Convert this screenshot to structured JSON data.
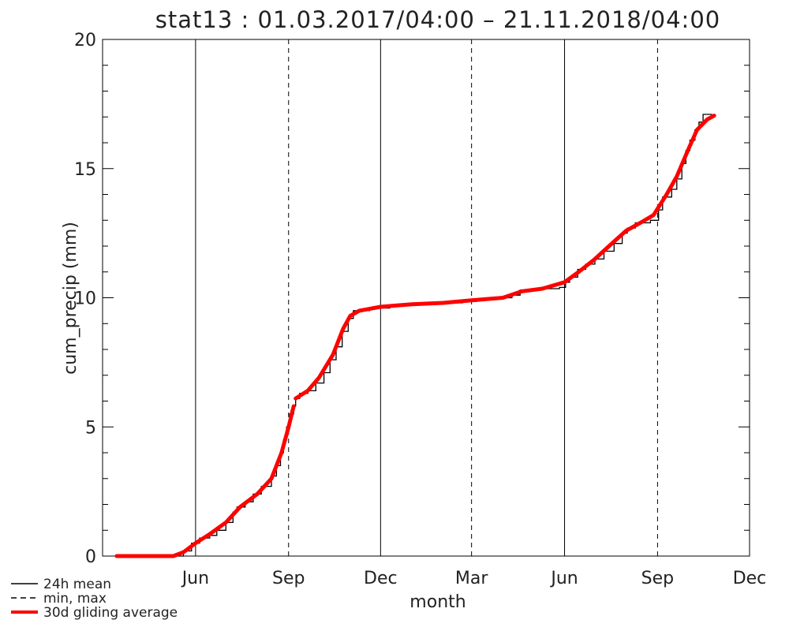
{
  "chart_data": {
    "type": "line",
    "title": "stat13 : 01.03.2017/04:00 – 21.11.2018/04:00",
    "xlabel": "month",
    "ylabel": "cum_precip (mm)",
    "ylim": [
      0,
      20
    ],
    "xlim": [
      "2017-03-01",
      "2018-12-01"
    ],
    "yticks": [
      0,
      5,
      10,
      15,
      20
    ],
    "xticks": [
      {
        "date": "2017-06-01",
        "label": "Jun"
      },
      {
        "date": "2017-09-01",
        "label": "Sep"
      },
      {
        "date": "2017-12-01",
        "label": "Dec"
      },
      {
        "date": "2018-03-01",
        "label": "Mar"
      },
      {
        "date": "2018-06-01",
        "label": "Jun"
      },
      {
        "date": "2018-09-01",
        "label": "Sep"
      },
      {
        "date": "2018-12-01",
        "label": "Dec"
      }
    ],
    "vertical_lines": [
      {
        "date": "2017-03-01",
        "style": "dashed"
      },
      {
        "date": "2017-06-01",
        "style": "solid"
      },
      {
        "date": "2017-09-01",
        "style": "dashed"
      },
      {
        "date": "2017-12-01",
        "style": "solid"
      },
      {
        "date": "2018-03-01",
        "style": "dashed"
      },
      {
        "date": "2018-06-01",
        "style": "solid"
      },
      {
        "date": "2018-09-01",
        "style": "dashed"
      }
    ],
    "series": [
      {
        "name": "24h mean",
        "color": "#000000",
        "style": "step",
        "points": [
          [
            "2017-03-15",
            0.0
          ],
          [
            "2017-05-15",
            0.0
          ],
          [
            "2017-05-20",
            0.2
          ],
          [
            "2017-05-28",
            0.5
          ],
          [
            "2017-06-05",
            0.7
          ],
          [
            "2017-06-15",
            0.8
          ],
          [
            "2017-06-22",
            1.0
          ],
          [
            "2017-07-01",
            1.3
          ],
          [
            "2017-07-08",
            1.7
          ],
          [
            "2017-07-12",
            1.9
          ],
          [
            "2017-07-20",
            2.1
          ],
          [
            "2017-07-28",
            2.4
          ],
          [
            "2017-08-05",
            2.7
          ],
          [
            "2017-08-15",
            3.1
          ],
          [
            "2017-08-20",
            3.5
          ],
          [
            "2017-08-24",
            4.0
          ],
          [
            "2017-08-27",
            4.5
          ],
          [
            "2017-08-30",
            5.0
          ],
          [
            "2017-09-02",
            5.5
          ],
          [
            "2017-09-06",
            5.8
          ],
          [
            "2017-09-08",
            6.1
          ],
          [
            "2017-09-12",
            6.3
          ],
          [
            "2017-09-20",
            6.4
          ],
          [
            "2017-09-28",
            6.7
          ],
          [
            "2017-10-06",
            7.1
          ],
          [
            "2017-10-12",
            7.6
          ],
          [
            "2017-10-18",
            8.1
          ],
          [
            "2017-10-24",
            8.7
          ],
          [
            "2017-10-30",
            9.2
          ],
          [
            "2017-11-04",
            9.5
          ],
          [
            "2017-11-20",
            9.6
          ],
          [
            "2017-12-10",
            9.7
          ],
          [
            "2018-01-01",
            9.75
          ],
          [
            "2018-02-01",
            9.8
          ],
          [
            "2018-02-20",
            9.85
          ],
          [
            "2018-03-05",
            9.95
          ],
          [
            "2018-03-25",
            10.0
          ],
          [
            "2018-04-10",
            10.1
          ],
          [
            "2018-04-18",
            10.3
          ],
          [
            "2018-05-01",
            10.35
          ],
          [
            "2018-05-27",
            10.4
          ],
          [
            "2018-06-02",
            10.6
          ],
          [
            "2018-06-06",
            10.8
          ],
          [
            "2018-06-14",
            11.1
          ],
          [
            "2018-06-22",
            11.3
          ],
          [
            "2018-07-01",
            11.5
          ],
          [
            "2018-07-10",
            11.8
          ],
          [
            "2018-07-20",
            12.1
          ],
          [
            "2018-07-28",
            12.5
          ],
          [
            "2018-08-02",
            12.7
          ],
          [
            "2018-08-10",
            12.9
          ],
          [
            "2018-08-25",
            13.0
          ],
          [
            "2018-09-02",
            13.4
          ],
          [
            "2018-09-06",
            13.9
          ],
          [
            "2018-09-15",
            14.2
          ],
          [
            "2018-09-20",
            14.6
          ],
          [
            "2018-09-25",
            15.2
          ],
          [
            "2018-09-29",
            15.7
          ],
          [
            "2018-10-03",
            16.1
          ],
          [
            "2018-10-08",
            16.5
          ],
          [
            "2018-10-12",
            16.8
          ],
          [
            "2018-10-16",
            17.1
          ],
          [
            "2018-10-25",
            17.1
          ]
        ]
      },
      {
        "name": "min, max",
        "color": "#000000",
        "style": "dashed",
        "points": []
      },
      {
        "name": "30d gliding average",
        "color": "#ff0000",
        "style": "thick",
        "segments": [
          [
            [
              "2017-03-15",
              0.0
            ],
            [
              "2017-05-10",
              0.0
            ],
            [
              "2017-05-20",
              0.15
            ],
            [
              "2017-06-01",
              0.5
            ],
            [
              "2017-06-15",
              0.85
            ],
            [
              "2017-07-01",
              1.3
            ],
            [
              "2017-07-15",
              1.9
            ],
            [
              "2017-08-01",
              2.4
            ],
            [
              "2017-08-15",
              3.0
            ],
            [
              "2017-08-25",
              4.0
            ],
            [
              "2017-09-01",
              5.0
            ],
            [
              "2017-09-06",
              5.8
            ]
          ],
          [
            [
              "2017-09-08",
              6.1
            ],
            [
              "2017-09-20",
              6.4
            ],
            [
              "2017-10-01",
              6.9
            ],
            [
              "2017-10-15",
              7.8
            ],
            [
              "2017-10-25",
              8.8
            ],
            [
              "2017-11-01",
              9.3
            ],
            [
              "2017-11-10",
              9.5
            ],
            [
              "2017-12-01",
              9.65
            ],
            [
              "2018-01-01",
              9.75
            ],
            [
              "2018-02-01",
              9.8
            ],
            [
              "2018-03-01",
              9.9
            ],
            [
              "2018-04-01",
              10.0
            ],
            [
              "2018-04-20",
              10.25
            ],
            [
              "2018-05-10",
              10.35
            ],
            [
              "2018-06-01",
              10.6
            ],
            [
              "2018-06-15",
              11.0
            ],
            [
              "2018-07-01",
              11.5
            ],
            [
              "2018-07-15",
              12.0
            ],
            [
              "2018-08-01",
              12.6
            ],
            [
              "2018-08-15",
              12.9
            ],
            [
              "2018-08-28",
              13.2
            ],
            [
              "2018-09-10",
              14.0
            ],
            [
              "2018-09-20",
              14.7
            ],
            [
              "2018-10-01",
              15.7
            ],
            [
              "2018-10-10",
              16.5
            ],
            [
              "2018-10-20",
              16.9
            ],
            [
              "2018-10-27",
              17.05
            ]
          ]
        ]
      }
    ],
    "legend": {
      "placement": "bottom-left",
      "entries": [
        {
          "label": "24h mean",
          "style": "solid",
          "color": "#000000"
        },
        {
          "label": "min, max",
          "style": "dashed",
          "color": "#000000"
        },
        {
          "label": "30d gliding average",
          "style": "thick",
          "color": "#ff0000"
        }
      ]
    },
    "grid": false
  }
}
